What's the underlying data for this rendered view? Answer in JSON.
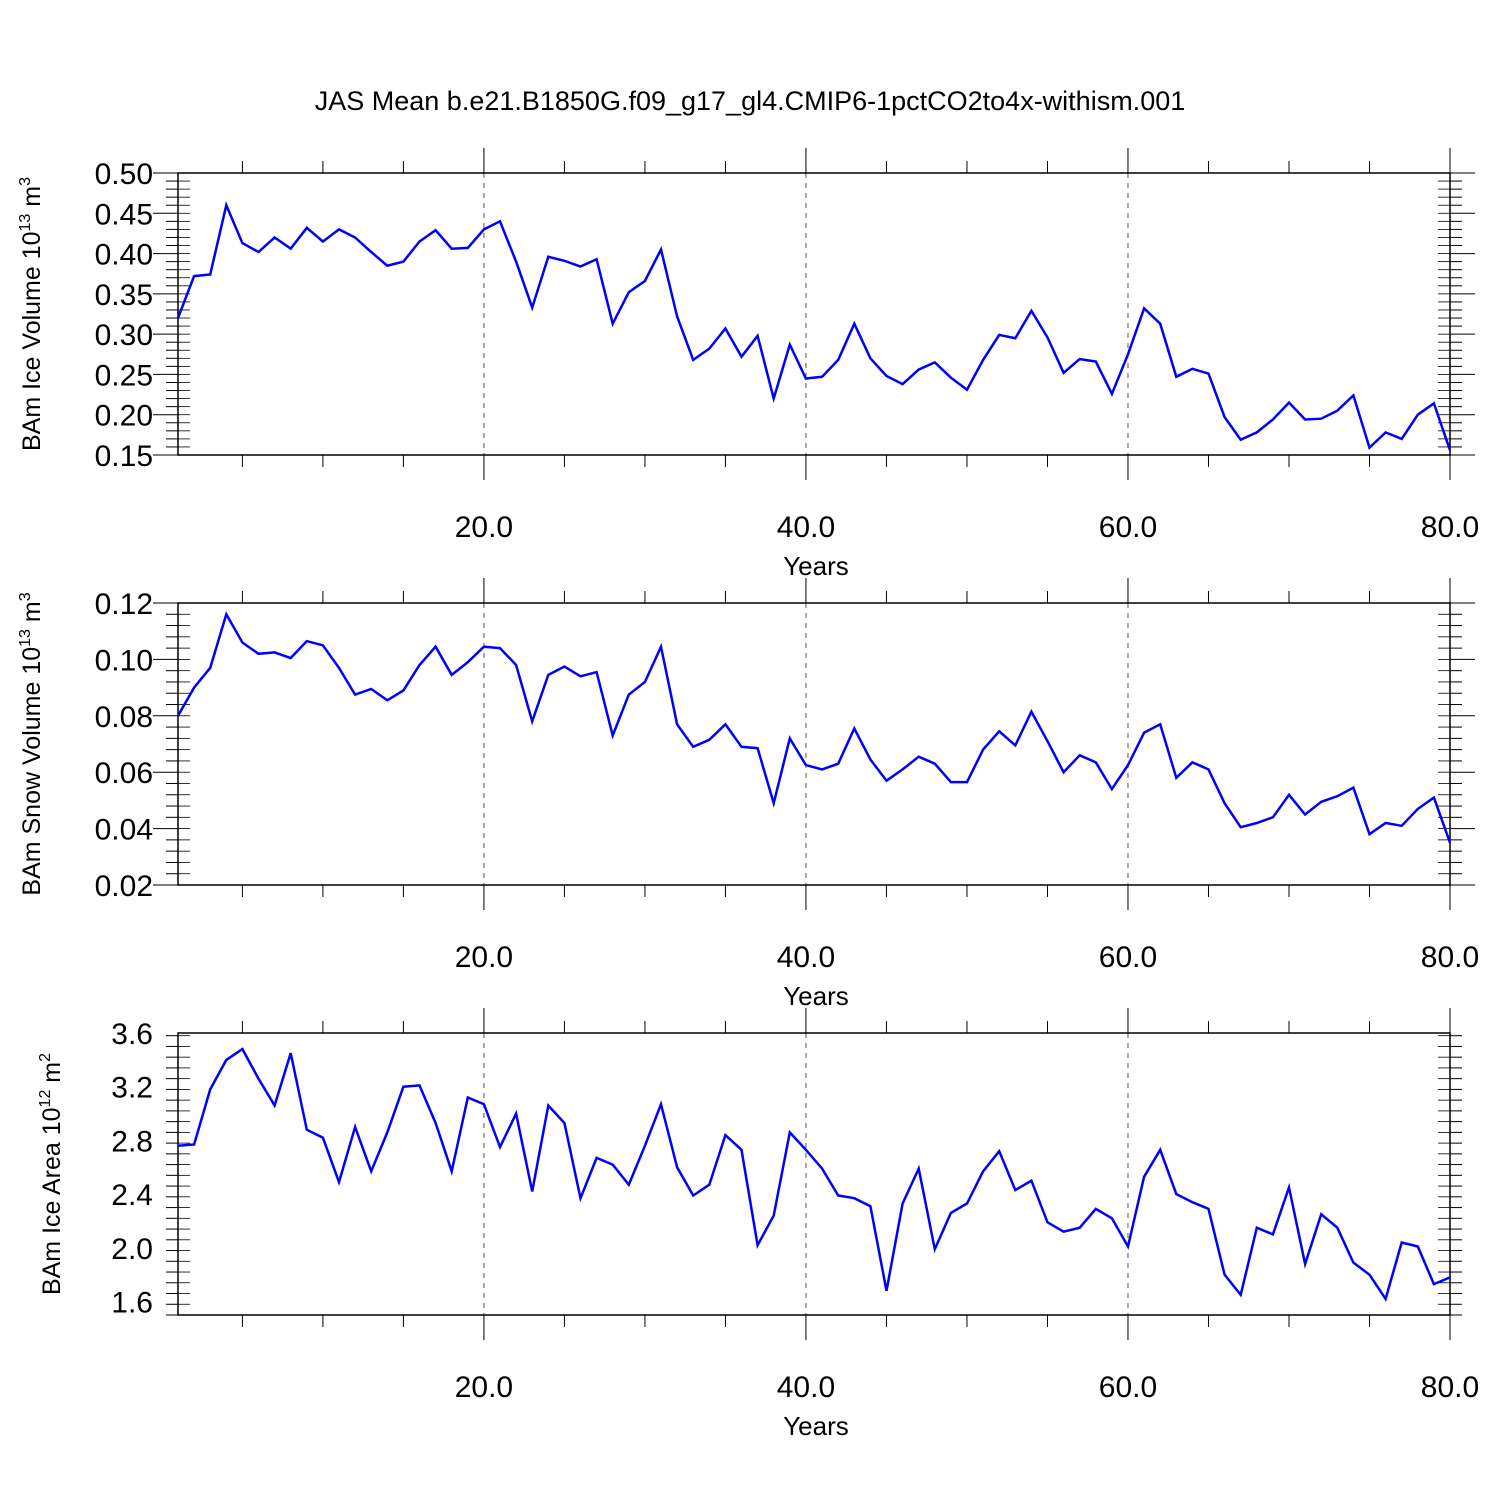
{
  "title": "JAS Mean b.e21.B1850G.f09_g17_gl4.CMIP6-1pctCO2to4x-withism.001",
  "chart_data": [
    {
      "type": "line",
      "xlabel": "Years",
      "ylabel": "BAm Ice Volume 10",
      "ylabel_exp": "13",
      "ylabel_unit": "m",
      "ylabel_unit_exp": "3",
      "xlim": [
        1,
        80
      ],
      "ylim": [
        0.15,
        0.5
      ],
      "xticks": [
        20,
        40,
        60,
        80
      ],
      "xtick_labels": [
        "20.0",
        "40.0",
        "60.0",
        "80.0"
      ],
      "yticks": [
        0.15,
        0.2,
        0.25,
        0.3,
        0.35,
        0.4,
        0.45,
        0.5
      ],
      "ytick_labels": [
        "0.15",
        "0.20",
        "0.25",
        "0.30",
        "0.35",
        "0.40",
        "0.45",
        "0.50"
      ],
      "grid": "dashed vertical at x ticks",
      "color": "#0000ff",
      "series": [
        {
          "x": [
            1,
            2,
            3,
            4,
            5,
            6,
            7,
            8,
            9,
            10,
            11,
            12,
            13,
            14,
            15,
            16,
            17,
            18,
            19,
            20,
            21,
            22,
            23,
            24,
            25,
            26,
            27,
            28,
            29,
            30,
            31,
            32,
            33,
            34,
            35,
            36,
            37,
            38,
            39,
            40,
            41,
            42,
            43,
            44,
            45,
            46,
            47,
            48,
            49,
            50,
            51,
            52,
            53,
            54,
            55,
            56,
            57,
            58,
            59,
            60,
            61,
            62,
            63,
            64,
            65,
            66,
            67,
            68,
            69,
            70,
            71,
            72,
            73,
            74,
            75,
            76,
            77,
            78,
            79,
            80
          ],
          "values": [
            0.32,
            0.372,
            0.374,
            0.46,
            0.413,
            0.402,
            0.42,
            0.406,
            0.432,
            0.415,
            0.43,
            0.42,
            0.402,
            0.385,
            0.39,
            0.415,
            0.429,
            0.406,
            0.407,
            0.43,
            0.44,
            0.39,
            0.333,
            0.396,
            0.391,
            0.384,
            0.393,
            0.313,
            0.352,
            0.366,
            0.405,
            0.322,
            0.268,
            0.282,
            0.307,
            0.272,
            0.298,
            0.22,
            0.287,
            0.245,
            0.247,
            0.268,
            0.313,
            0.27,
            0.248,
            0.238,
            0.256,
            0.265,
            0.246,
            0.231,
            0.268,
            0.299,
            0.295,
            0.329,
            0.296,
            0.252,
            0.269,
            0.266,
            0.226,
            0.275,
            0.332,
            0.313,
            0.247,
            0.257,
            0.251,
            0.197,
            0.169,
            0.178,
            0.194,
            0.215,
            0.194,
            0.195,
            0.205,
            0.224,
            0.159,
            0.178,
            0.17,
            0.2,
            0.214,
            0.156
          ]
        }
      ]
    },
    {
      "type": "line",
      "xlabel": "Years",
      "ylabel": "BAm Snow Volume 10",
      "ylabel_exp": "13",
      "ylabel_unit": "m",
      "ylabel_unit_exp": "3",
      "xlim": [
        1,
        80
      ],
      "ylim": [
        0.02,
        0.12
      ],
      "xticks": [
        20,
        40,
        60,
        80
      ],
      "xtick_labels": [
        "20.0",
        "40.0",
        "60.0",
        "80.0"
      ],
      "yticks": [
        0.02,
        0.04,
        0.06,
        0.08,
        0.1,
        0.12
      ],
      "ytick_labels": [
        "0.02",
        "0.04",
        "0.06",
        "0.08",
        "0.10",
        "0.12"
      ],
      "grid": "dashed vertical at x ticks",
      "color": "#0000ff",
      "series": [
        {
          "x": [
            1,
            2,
            3,
            4,
            5,
            6,
            7,
            8,
            9,
            10,
            11,
            12,
            13,
            14,
            15,
            16,
            17,
            18,
            19,
            20,
            21,
            22,
            23,
            24,
            25,
            26,
            27,
            28,
            29,
            30,
            31,
            32,
            33,
            34,
            35,
            36,
            37,
            38,
            39,
            40,
            41,
            42,
            43,
            44,
            45,
            46,
            47,
            48,
            49,
            50,
            51,
            52,
            53,
            54,
            55,
            56,
            57,
            58,
            59,
            60,
            61,
            62,
            63,
            64,
            65,
            66,
            67,
            68,
            69,
            70,
            71,
            72,
            73,
            74,
            75,
            76,
            77,
            78,
            79,
            80
          ],
          "values": [
            0.08,
            0.09,
            0.097,
            0.116,
            0.106,
            0.102,
            0.1025,
            0.1005,
            0.1065,
            0.105,
            0.097,
            0.0875,
            0.0895,
            0.0855,
            0.089,
            0.098,
            0.1045,
            0.0945,
            0.099,
            0.1045,
            0.104,
            0.098,
            0.078,
            0.0945,
            0.0975,
            0.094,
            0.0955,
            0.073,
            0.0875,
            0.092,
            0.1045,
            0.077,
            0.069,
            0.0715,
            0.077,
            0.069,
            0.0685,
            0.049,
            0.072,
            0.0625,
            0.061,
            0.063,
            0.0755,
            0.0645,
            0.057,
            0.061,
            0.0655,
            0.063,
            0.0565,
            0.0565,
            0.068,
            0.0745,
            0.0695,
            0.0815,
            0.071,
            0.06,
            0.066,
            0.0635,
            0.054,
            0.0625,
            0.074,
            0.077,
            0.058,
            0.0635,
            0.061,
            0.049,
            0.0405,
            0.042,
            0.044,
            0.052,
            0.045,
            0.0495,
            0.0515,
            0.0545,
            0.038,
            0.042,
            0.041,
            0.047,
            0.051,
            0.035
          ]
        }
      ]
    },
    {
      "type": "line",
      "xlabel": "Years",
      "ylabel": "BAm Ice Area 10",
      "ylabel_exp": "12",
      "ylabel_unit": "m",
      "ylabel_unit_exp": "2",
      "xlim": [
        1,
        80
      ],
      "ylim": [
        1.5,
        3.6
      ],
      "xticks": [
        20,
        40,
        60,
        80
      ],
      "xtick_labels": [
        "20.0",
        "40.0",
        "60.0",
        "80.0"
      ],
      "yticks": [
        1.6,
        2.0,
        2.4,
        2.8,
        3.2,
        3.6
      ],
      "ytick_labels": [
        "1.6",
        "2.0",
        "2.4",
        "2.8",
        "3.2",
        "3.6"
      ],
      "grid": "dashed vertical at x ticks",
      "color": "#0000ff",
      "series": [
        {
          "x": [
            1,
            2,
            3,
            4,
            5,
            6,
            7,
            8,
            9,
            10,
            11,
            12,
            13,
            14,
            15,
            16,
            17,
            18,
            19,
            20,
            21,
            22,
            23,
            24,
            25,
            26,
            27,
            28,
            29,
            30,
            31,
            32,
            33,
            34,
            35,
            36,
            37,
            38,
            39,
            40,
            41,
            42,
            43,
            44,
            45,
            46,
            47,
            48,
            49,
            50,
            51,
            52,
            53,
            54,
            55,
            56,
            57,
            58,
            59,
            60,
            61,
            62,
            63,
            64,
            65,
            66,
            67,
            68,
            69,
            70,
            71,
            72,
            73,
            74,
            75,
            76,
            77,
            78,
            79,
            80
          ],
          "values": [
            2.76,
            2.77,
            3.18,
            3.4,
            3.48,
            3.26,
            3.06,
            3.45,
            2.88,
            2.82,
            2.49,
            2.9,
            2.57,
            2.86,
            3.2,
            3.21,
            2.93,
            2.57,
            3.12,
            3.07,
            2.75,
            3.0,
            2.42,
            3.06,
            2.93,
            2.37,
            2.67,
            2.62,
            2.47,
            2.76,
            3.07,
            2.6,
            2.39,
            2.47,
            2.84,
            2.73,
            2.02,
            2.24,
            2.86,
            2.73,
            2.59,
            2.39,
            2.37,
            2.31,
            1.68,
            2.33,
            2.59,
            1.99,
            2.26,
            2.33,
            2.57,
            2.72,
            2.43,
            2.5,
            2.19,
            2.12,
            2.15,
            2.29,
            2.22,
            2.01,
            2.53,
            2.73,
            2.4,
            2.34,
            2.29,
            1.8,
            1.65,
            2.15,
            2.1,
            2.45,
            1.88,
            2.25,
            2.15,
            1.89,
            1.8,
            1.62,
            2.04,
            2.01,
            1.73,
            1.78
          ]
        }
      ]
    }
  ]
}
